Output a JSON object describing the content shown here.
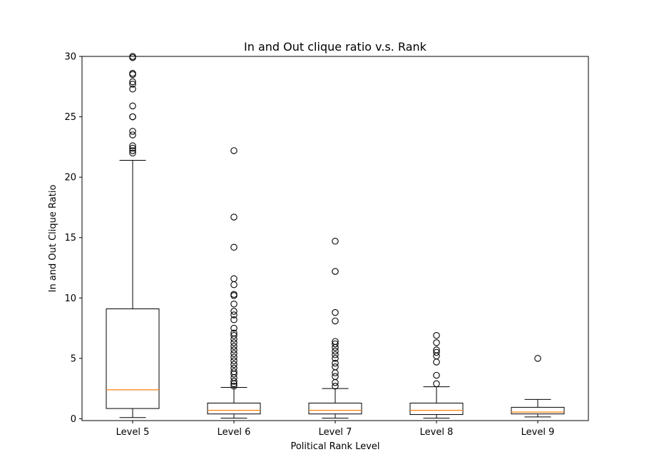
{
  "chart_data": {
    "type": "box",
    "title": "In and Out clique ratio v.s. Rank",
    "xlabel": "Political Rank Level",
    "ylabel": "In and Out Clique Ratio",
    "ylim": [
      -0.15,
      30
    ],
    "yticks": [
      0,
      5,
      10,
      15,
      20,
      25,
      30
    ],
    "grid": false,
    "categories": [
      "Level 5",
      "Level 6",
      "Level 7",
      "Level 8",
      "Level 9"
    ],
    "boxes": [
      {
        "category": "Level 5",
        "whisker_low": 0.1,
        "q1": 0.85,
        "median": 2.4,
        "q3": 9.1,
        "whisker_high": 21.4,
        "outliers": [
          22.0,
          22.2,
          22.4,
          22.6,
          23.5,
          23.8,
          25.0,
          25.0,
          25.9,
          27.3,
          27.7,
          27.9,
          28.5,
          28.6,
          29.9,
          30.0
        ]
      },
      {
        "category": "Level 6",
        "whisker_low": 0.05,
        "q1": 0.4,
        "median": 0.7,
        "q3": 1.3,
        "whisker_high": 2.6,
        "outliers": [
          2.7,
          2.9,
          3.1,
          3.4,
          3.7,
          3.9,
          4.2,
          4.5,
          4.8,
          5.1,
          5.4,
          5.7,
          6.0,
          6.3,
          6.6,
          6.9,
          7.1,
          7.5,
          8.2,
          8.6,
          8.9,
          9.5,
          10.2,
          10.3,
          11.1,
          11.6,
          14.2,
          16.7,
          22.2
        ]
      },
      {
        "category": "Level 7",
        "whisker_low": 0.05,
        "q1": 0.4,
        "median": 0.7,
        "q3": 1.3,
        "whisker_high": 2.5,
        "outliers": [
          2.7,
          3.0,
          3.5,
          3.8,
          4.3,
          4.6,
          5.0,
          5.3,
          5.6,
          5.9,
          6.2,
          6.4,
          8.1,
          8.8,
          12.2,
          14.7
        ]
      },
      {
        "category": "Level 8",
        "whisker_low": 0.05,
        "q1": 0.35,
        "median": 0.7,
        "q3": 1.3,
        "whisker_high": 2.65,
        "outliers": [
          2.9,
          3.6,
          4.7,
          5.2,
          5.5,
          5.7,
          6.3,
          6.9
        ]
      },
      {
        "category": "Level 9",
        "whisker_low": 0.15,
        "q1": 0.4,
        "median": 0.55,
        "q3": 0.95,
        "whisker_high": 1.6,
        "outliers": [
          5.0
        ]
      }
    ],
    "colors": {
      "box": "#000000",
      "median": "#ff7f0e",
      "outlier_edge": "#000000"
    }
  }
}
